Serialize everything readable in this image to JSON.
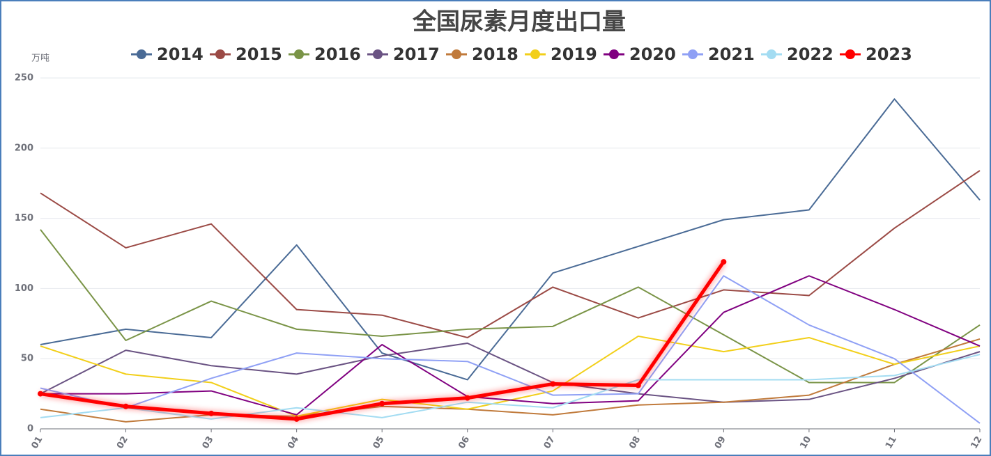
{
  "chart_data": {
    "type": "line",
    "title": "全国尿素月度出口量",
    "y_label": "万吨",
    "categories": [
      "01",
      "02",
      "03",
      "04",
      "05",
      "06",
      "07",
      "08",
      "09",
      "10",
      "11",
      "12"
    ],
    "ylim": [
      0,
      250
    ],
    "yticks": [
      0,
      50,
      100,
      150,
      200,
      250
    ],
    "grid": true,
    "series": [
      {
        "name": "2014",
        "color": "#4a6b96",
        "values": [
          60,
          71,
          65,
          131,
          54,
          35,
          111,
          130,
          149,
          156,
          235,
          163
        ]
      },
      {
        "name": "2015",
        "color": "#9b4a45",
        "values": [
          168,
          129,
          146,
          85,
          81,
          65,
          101,
          79,
          99,
          95,
          143,
          184
        ]
      },
      {
        "name": "2016",
        "color": "#7a9447",
        "values": [
          142,
          63,
          91,
          71,
          66,
          71,
          73,
          101,
          67,
          33,
          33,
          74
        ]
      },
      {
        "name": "2017",
        "color": "#6a5383",
        "values": [
          25,
          56,
          45,
          39,
          52,
          61,
          33,
          25,
          19,
          21,
          36,
          55
        ]
      },
      {
        "name": "2018",
        "color": "#c07a3b",
        "values": [
          14,
          5,
          10,
          9,
          16,
          14,
          10,
          17,
          19,
          24,
          46,
          64
        ]
      },
      {
        "name": "2019",
        "color": "#f2cf19",
        "values": [
          59,
          39,
          33,
          9,
          21,
          14,
          27,
          66,
          55,
          65,
          46,
          59
        ]
      },
      {
        "name": "2020",
        "color": "#800080",
        "values": [
          25,
          25,
          27,
          10,
          60,
          23,
          18,
          20,
          83,
          109,
          85,
          59
        ]
      },
      {
        "name": "2021",
        "color": "#8fa0f5",
        "values": [
          29,
          15,
          36,
          54,
          50,
          48,
          24,
          25,
          109,
          74,
          50,
          4
        ]
      },
      {
        "name": "2022",
        "color": "#a3dcf2",
        "values": [
          8,
          15,
          7,
          15,
          8,
          19,
          15,
          35,
          35,
          35,
          38,
          53
        ]
      },
      {
        "name": "2023",
        "color": "#ff0000",
        "values": [
          25,
          16,
          11,
          7,
          18,
          22,
          32,
          31,
          119,
          null,
          null,
          null
        ]
      }
    ]
  }
}
